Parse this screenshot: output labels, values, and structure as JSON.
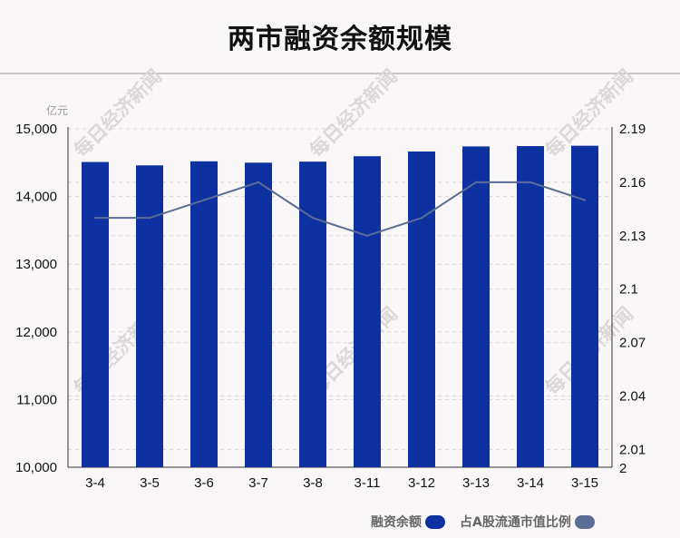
{
  "title": "两市融资余额规模",
  "watermark": "每日经济新闻",
  "colors": {
    "bar": "#0d31a0",
    "line": "#5b6d96",
    "grid": "#d9d4d6",
    "axis": "#333333"
  },
  "legend": {
    "bar_label": "融资余额",
    "line_label": "占A股流通市值比例"
  },
  "chart_data": {
    "type": "bar",
    "categories": [
      "3-4",
      "3-5",
      "3-6",
      "3-7",
      "3-8",
      "3-11",
      "3-12",
      "3-13",
      "3-14",
      "3-15"
    ],
    "series": [
      {
        "name": "融资余额",
        "type": "bar",
        "axis": "left",
        "values": [
          14510,
          14460,
          14520,
          14500,
          14515,
          14595,
          14665,
          14740,
          14745,
          14750
        ]
      },
      {
        "name": "占A股流通市值比例",
        "type": "line",
        "axis": "right",
        "values": [
          2.14,
          2.14,
          2.15,
          2.16,
          2.14,
          2.13,
          2.14,
          2.16,
          2.16,
          2.15
        ]
      }
    ],
    "y_left": {
      "unit": "亿元",
      "range": [
        10000,
        15000
      ],
      "ticks": [
        "10,000",
        "11,000",
        "12,000",
        "13,000",
        "14,000",
        "15,000"
      ],
      "tick_values": [
        10000,
        11000,
        12000,
        13000,
        14000,
        15000
      ]
    },
    "y_right": {
      "range": [
        2,
        2.19
      ],
      "ticks": [
        "2",
        "2.01",
        "2.04",
        "2.07",
        "2.1",
        "2.13",
        "2.16",
        "2.19"
      ],
      "tick_values": [
        2,
        2.01,
        2.04,
        2.07,
        2.1,
        2.13,
        2.16,
        2.19
      ]
    },
    "grid": true,
    "legend_position": "bottom-right"
  }
}
